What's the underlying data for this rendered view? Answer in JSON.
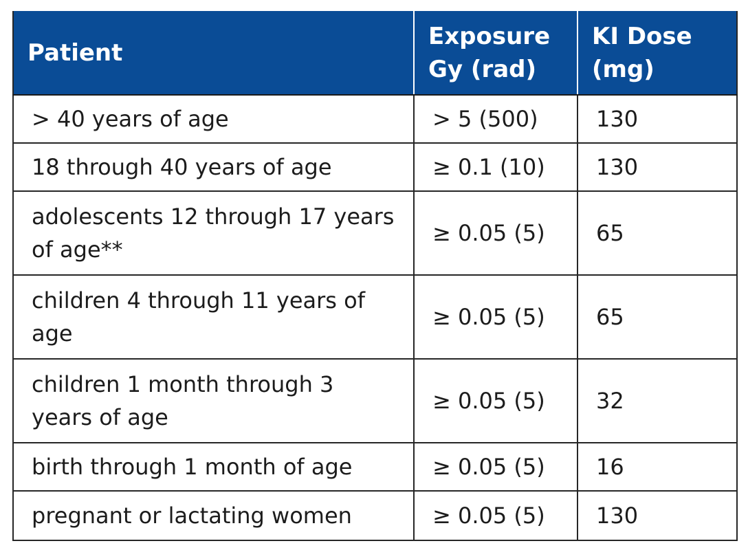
{
  "table": {
    "headers": [
      {
        "label": "Patient"
      },
      {
        "label": "Exposure Gy (rad)"
      },
      {
        "label": "KI Dose (mg)"
      }
    ],
    "rows": [
      {
        "patient": "> 40 years of age",
        "exposure": "> 5 (500)",
        "dose": "130"
      },
      {
        "patient": "18 through 40 years of age",
        "exposure": "≥ 0.1 (10)",
        "dose": "130"
      },
      {
        "patient": "adolescents 12 through 17 years of age**",
        "exposure": "≥ 0.05 (5)",
        "dose": "65"
      },
      {
        "patient": "children 4 through 11 years of age",
        "exposure": "≥ 0.05 (5)",
        "dose": "65"
      },
      {
        "patient": "children 1 month through 3 years of age",
        "exposure": "≥ 0.05 (5)",
        "dose": "32"
      },
      {
        "patient": "birth through 1 month of age",
        "exposure": "≥ 0.05 (5)",
        "dose": "16"
      },
      {
        "patient": "pregnant or lactating women",
        "exposure": "≥ 0.05 (5)",
        "dose": "130"
      }
    ]
  },
  "colors": {
    "header_background": "#0a4c96",
    "header_text": "#ffffff",
    "body_text": "#1c1c1c",
    "border": "#262626"
  }
}
